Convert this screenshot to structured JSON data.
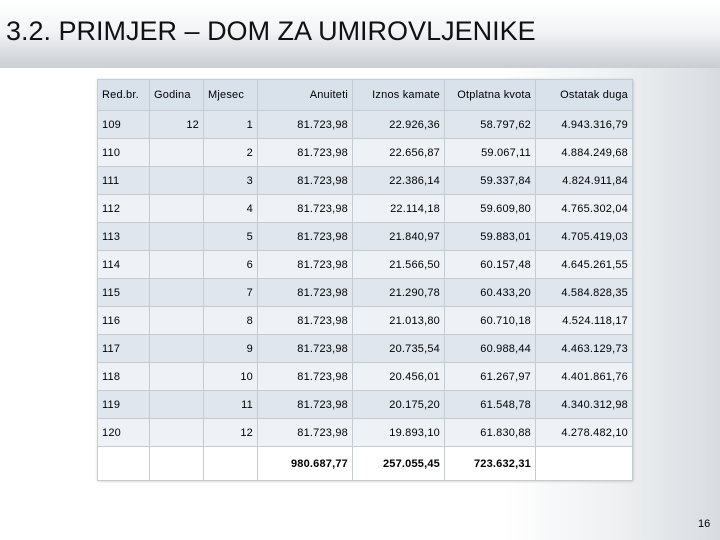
{
  "slide": {
    "title": "3.2. PRIMJER – DOM ZA UMIROVLJENIKE",
    "page_number": "16"
  },
  "table": {
    "headers": [
      "Red.br.",
      "Godina",
      "Mjesec",
      "Anuiteti",
      "Iznos kamate",
      "Otplatna kvota",
      "Ostatak duga"
    ],
    "rows": [
      [
        "109",
        "12",
        "1",
        "81.723,98",
        "22.926,36",
        "58.797,62",
        "4.943.316,79"
      ],
      [
        "110",
        "",
        "2",
        "81.723,98",
        "22.656,87",
        "59.067,11",
        "4.884.249,68"
      ],
      [
        "111",
        "",
        "3",
        "81.723,98",
        "22.386,14",
        "59.337,84",
        "4.824.911,84"
      ],
      [
        "112",
        "",
        "4",
        "81.723,98",
        "22.114,18",
        "59.609,80",
        "4.765.302,04"
      ],
      [
        "113",
        "",
        "5",
        "81.723,98",
        "21.840,97",
        "59.883,01",
        "4.705.419,03"
      ],
      [
        "114",
        "",
        "6",
        "81.723,98",
        "21.566,50",
        "60.157,48",
        "4.645.261,55"
      ],
      [
        "115",
        "",
        "7",
        "81.723,98",
        "21.290,78",
        "60.433,20",
        "4.584.828,35"
      ],
      [
        "116",
        "",
        "8",
        "81.723,98",
        "21.013,80",
        "60.710,18",
        "4.524.118,17"
      ],
      [
        "117",
        "",
        "9",
        "81.723,98",
        "20.735,54",
        "60.988,44",
        "4.463.129,73"
      ],
      [
        "118",
        "",
        "10",
        "81.723,98",
        "20.456,01",
        "61.267,97",
        "4.401.861,76"
      ],
      [
        "119",
        "",
        "11",
        "81.723,98",
        "20.175,20",
        "61.548,78",
        "4.340.312,98"
      ],
      [
        "120",
        "",
        "12",
        "81.723,98",
        "19.893,10",
        "61.830,88",
        "4.278.482,10"
      ]
    ],
    "totals": [
      "",
      "",
      "",
      "980.687,77",
      "257.055,45",
      "723.632,31",
      ""
    ]
  }
}
